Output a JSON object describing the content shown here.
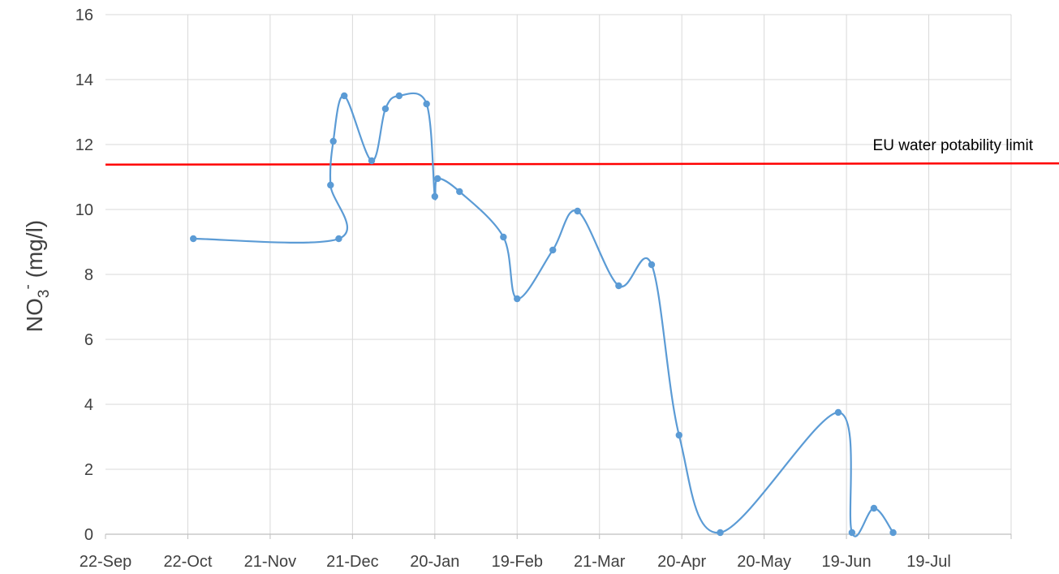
{
  "chart_data": {
    "type": "line",
    "title": "",
    "xlabel": "",
    "ylabel": {
      "main": "NO",
      "subscript": "3",
      "superscript": "-",
      "unit": " (mg/l)"
    },
    "x_tick_labels": [
      "22-Sep",
      "22-Oct",
      "21-Nov",
      "21-Dec",
      "20-Jan",
      "19-Feb",
      "21-Mar",
      "20-Apr",
      "20-May",
      "19-Jun",
      "19-Jul"
    ],
    "y_tick_labels": [
      "0",
      "2",
      "4",
      "6",
      "8",
      "10",
      "12",
      "14",
      "16"
    ],
    "ylim": [
      0,
      16
    ],
    "grid": true,
    "series": [
      {
        "color": "#5b9bd5",
        "x": [
          "24-Oct",
          "16-Dec",
          "13-Dec",
          "14-Dec",
          "18-Dec",
          "28-Dec",
          "2-Jan",
          "7-Jan",
          "17-Jan",
          "20-Jan",
          "21-Jan",
          "29-Jan",
          "14-Feb",
          "19-Feb",
          "4-Mar",
          "13-Mar",
          "28-Mar",
          "9-Apr",
          "19-Apr",
          "4-May",
          "16-Jun",
          "21-Jun",
          "29-Jun",
          "6-Jul"
        ],
        "y": [
          9.1,
          9.1,
          10.75,
          12.1,
          13.5,
          11.5,
          13.1,
          13.5,
          13.25,
          10.4,
          10.95,
          10.55,
          9.15,
          7.25,
          8.75,
          9.95,
          7.65,
          8.3,
          3.05,
          0.05,
          3.75,
          0.05,
          0.8,
          0.05
        ]
      }
    ],
    "reference_line": {
      "label": "EU water potability limit",
      "y": 11.4,
      "color": "#ff0000"
    }
  }
}
